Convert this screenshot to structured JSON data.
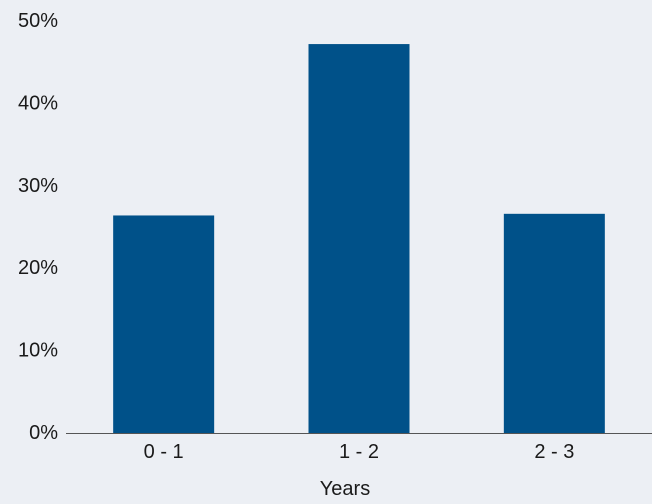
{
  "chart_data": {
    "type": "bar",
    "categories": [
      "0 - 1",
      "1 - 2",
      "2 - 3"
    ],
    "values": [
      26.4,
      47.2,
      26.6
    ],
    "title": "",
    "xlabel": "Years",
    "ylabel": "",
    "ylim": [
      0,
      50
    ],
    "yticks": [
      0,
      10,
      20,
      30,
      40,
      50
    ],
    "ytick_labels": [
      "0%",
      "10%",
      "20%",
      "30%",
      "40%",
      "50%"
    ],
    "grid": false,
    "legend": "none",
    "colors": {
      "bar": "#005189",
      "background": "#eceff4",
      "axis": "#555555",
      "text": "#1a1a1a"
    }
  }
}
